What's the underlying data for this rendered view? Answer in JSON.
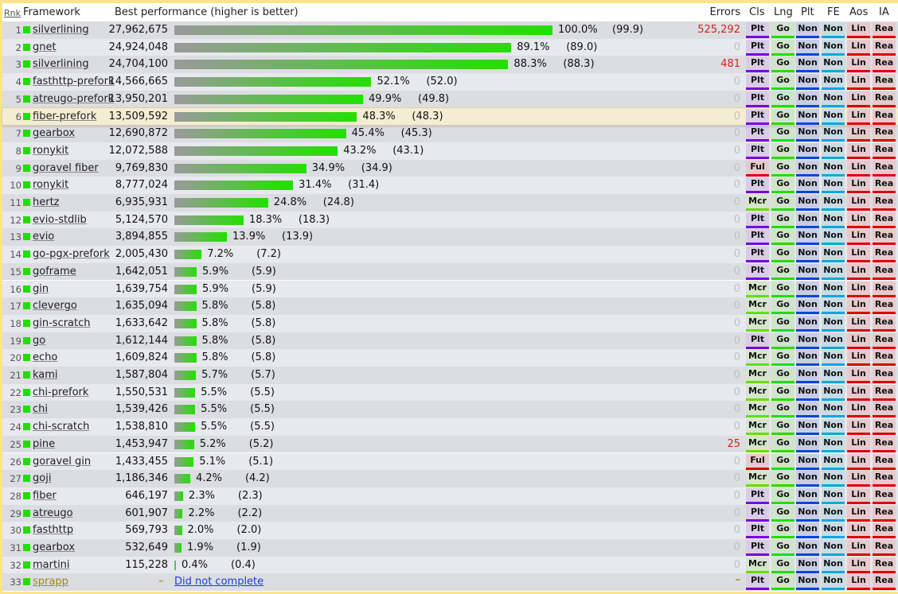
{
  "header": {
    "rank": "Rnk",
    "framework": "Framework",
    "best": "Best performance (higher is better)",
    "errors": "Errors",
    "cls": "Cls",
    "lng": "Lng",
    "plt": "Plt",
    "fe": "FE",
    "aos": "Aos",
    "ia": "IA"
  },
  "colors": {
    "accent_green": "#22dd00",
    "error_red": "#d42020",
    "link_blue": "#1a3bdd",
    "highlight": "#f5edd3",
    "border": "#f8e58a"
  },
  "badge_styles": {
    "Plt": {
      "bg": "#d8cce6",
      "line": "#7700dd"
    },
    "Mcr": {
      "bg": "#d6e6cc",
      "line": "#66dd00"
    },
    "Ful": {
      "bg": "#e6c9cc",
      "line": "#dd0000"
    },
    "Go": {
      "bg": "#d0e4cc",
      "line": "#22dd00"
    },
    "NonPlt": {
      "bg": "#c9cde4",
      "line": "#0044dd"
    },
    "NonFE": {
      "bg": "#c9dce4",
      "line": "#00aadd"
    },
    "Lin": {
      "bg": "#e6cacd",
      "line": "#dd0000"
    },
    "Rea": {
      "bg": "#e6cacd",
      "line": "#dd0000"
    }
  },
  "rows": [
    {
      "rank": "1",
      "name": "silverlining",
      "value": "27,962,675",
      "pct": 100.0,
      "pct_label": "100.0%",
      "paren": "(99.9)",
      "errors": "525,292",
      "cls": "Plt"
    },
    {
      "rank": "2",
      "name": "gnet",
      "value": "24,924,048",
      "pct": 89.1,
      "pct_label": "89.1%",
      "paren": "(89.0)",
      "errors": "0",
      "cls": "Plt"
    },
    {
      "rank": "3",
      "name": "silverlining",
      "value": "24,704,100",
      "pct": 88.3,
      "pct_label": "88.3%",
      "paren": "(88.3)",
      "errors": "481",
      "cls": "Plt"
    },
    {
      "rank": "4",
      "name": "fasthttp-prefork",
      "value": "14,566,665",
      "pct": 52.1,
      "pct_label": "52.1%",
      "paren": "(52.0)",
      "errors": "0",
      "cls": "Plt"
    },
    {
      "rank": "5",
      "name": "atreugo-prefork",
      "value": "13,950,201",
      "pct": 49.9,
      "pct_label": "49.9%",
      "paren": "(49.8)",
      "errors": "0",
      "cls": "Plt"
    },
    {
      "rank": "6",
      "name": "fiber-prefork",
      "value": "13,509,592",
      "pct": 48.3,
      "pct_label": "48.3%",
      "paren": "(48.3)",
      "errors": "0",
      "cls": "Plt",
      "highlight": true
    },
    {
      "rank": "7",
      "name": "gearbox",
      "value": "12,690,872",
      "pct": 45.4,
      "pct_label": "45.4%",
      "paren": "(45.3)",
      "errors": "0",
      "cls": "Plt"
    },
    {
      "rank": "8",
      "name": "ronykit",
      "value": "12,072,588",
      "pct": 43.2,
      "pct_label": "43.2%",
      "paren": "(43.1)",
      "errors": "0",
      "cls": "Plt"
    },
    {
      "rank": "9",
      "name": "goravel fiber",
      "value": "9,769,830",
      "pct": 34.9,
      "pct_label": "34.9%",
      "paren": "(34.9)",
      "errors": "0",
      "cls": "Ful"
    },
    {
      "rank": "10",
      "name": "ronykit",
      "value": "8,777,024",
      "pct": 31.4,
      "pct_label": "31.4%",
      "paren": "(31.4)",
      "errors": "0",
      "cls": "Plt"
    },
    {
      "rank": "11",
      "name": "hertz",
      "value": "6,935,931",
      "pct": 24.8,
      "pct_label": "24.8%",
      "paren": "(24.8)",
      "errors": "0",
      "cls": "Mcr"
    },
    {
      "rank": "12",
      "name": "evio-stdlib",
      "value": "5,124,570",
      "pct": 18.3,
      "pct_label": "18.3%",
      "paren": "(18.3)",
      "errors": "0",
      "cls": "Plt"
    },
    {
      "rank": "13",
      "name": "evio",
      "value": "3,894,855",
      "pct": 13.9,
      "pct_label": "13.9%",
      "paren": "(13.9)",
      "errors": "0",
      "cls": "Plt"
    },
    {
      "rank": "14",
      "name": "go-pgx-prefork",
      "value": "2,005,430",
      "pct": 7.2,
      "pct_label": "7.2%",
      "paren": "(7.2)",
      "errors": "0",
      "cls": "Plt"
    },
    {
      "rank": "15",
      "name": "goframe",
      "value": "1,642,051",
      "pct": 5.9,
      "pct_label": "5.9%",
      "paren": "(5.9)",
      "errors": "0",
      "cls": "Plt"
    },
    {
      "rank": "16",
      "name": "gin",
      "value": "1,639,754",
      "pct": 5.9,
      "pct_label": "5.9%",
      "paren": "(5.9)",
      "errors": "0",
      "cls": "Mcr"
    },
    {
      "rank": "17",
      "name": "clevergo",
      "value": "1,635,094",
      "pct": 5.8,
      "pct_label": "5.8%",
      "paren": "(5.8)",
      "errors": "0",
      "cls": "Mcr"
    },
    {
      "rank": "18",
      "name": "gin-scratch",
      "value": "1,633,642",
      "pct": 5.8,
      "pct_label": "5.8%",
      "paren": "(5.8)",
      "errors": "0",
      "cls": "Mcr"
    },
    {
      "rank": "19",
      "name": "go",
      "value": "1,612,144",
      "pct": 5.8,
      "pct_label": "5.8%",
      "paren": "(5.8)",
      "errors": "0",
      "cls": "Plt"
    },
    {
      "rank": "20",
      "name": "echo",
      "value": "1,609,824",
      "pct": 5.8,
      "pct_label": "5.8%",
      "paren": "(5.8)",
      "errors": "0",
      "cls": "Mcr"
    },
    {
      "rank": "21",
      "name": "kami",
      "value": "1,587,804",
      "pct": 5.7,
      "pct_label": "5.7%",
      "paren": "(5.7)",
      "errors": "0",
      "cls": "Mcr"
    },
    {
      "rank": "22",
      "name": "chi-prefork",
      "value": "1,550,531",
      "pct": 5.5,
      "pct_label": "5.5%",
      "paren": "(5.5)",
      "errors": "0",
      "cls": "Mcr"
    },
    {
      "rank": "23",
      "name": "chi",
      "value": "1,539,426",
      "pct": 5.5,
      "pct_label": "5.5%",
      "paren": "(5.5)",
      "errors": "0",
      "cls": "Mcr"
    },
    {
      "rank": "24",
      "name": "chi-scratch",
      "value": "1,538,810",
      "pct": 5.5,
      "pct_label": "5.5%",
      "paren": "(5.5)",
      "errors": "0",
      "cls": "Mcr"
    },
    {
      "rank": "25",
      "name": "pine",
      "value": "1,453,947",
      "pct": 5.2,
      "pct_label": "5.2%",
      "paren": "(5.2)",
      "errors": "25",
      "cls": "Mcr"
    },
    {
      "rank": "26",
      "name": "goravel gin",
      "value": "1,433,455",
      "pct": 5.1,
      "pct_label": "5.1%",
      "paren": "(5.1)",
      "errors": "0",
      "cls": "Ful"
    },
    {
      "rank": "27",
      "name": "goji",
      "value": "1,186,346",
      "pct": 4.2,
      "pct_label": "4.2%",
      "paren": "(4.2)",
      "errors": "0",
      "cls": "Mcr"
    },
    {
      "rank": "28",
      "name": "fiber",
      "value": "646,197",
      "pct": 2.3,
      "pct_label": "2.3%",
      "paren": "(2.3)",
      "errors": "0",
      "cls": "Plt"
    },
    {
      "rank": "29",
      "name": "atreugo",
      "value": "601,907",
      "pct": 2.2,
      "pct_label": "2.2%",
      "paren": "(2.2)",
      "errors": "0",
      "cls": "Plt"
    },
    {
      "rank": "30",
      "name": "fasthttp",
      "value": "569,793",
      "pct": 2.0,
      "pct_label": "2.0%",
      "paren": "(2.0)",
      "errors": "0",
      "cls": "Plt"
    },
    {
      "rank": "31",
      "name": "gearbox",
      "value": "532,649",
      "pct": 1.9,
      "pct_label": "1.9%",
      "paren": "(1.9)",
      "errors": "0",
      "cls": "Plt"
    },
    {
      "rank": "32",
      "name": "martini",
      "value": "115,228",
      "pct": 0.4,
      "pct_label": "0.4%",
      "paren": "(0.4)",
      "errors": "0",
      "cls": "Mcr"
    },
    {
      "rank": "33",
      "name": "sprapp",
      "value": "–",
      "dnc": "Did not complete",
      "errors": "–",
      "cls": "Plt"
    }
  ],
  "common_badges": {
    "lng": "Go",
    "plt": "Non",
    "fe": "Non",
    "aos": "Lin",
    "ia": "Rea"
  }
}
